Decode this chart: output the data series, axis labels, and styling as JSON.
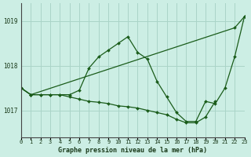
{
  "title": "Graphe pression niveau de la mer (hPa)",
  "background_color": "#cceee4",
  "grid_color": "#aad4c8",
  "line_color": "#1a5c1a",
  "xlim": [
    0,
    23
  ],
  "ylim": [
    1016.4,
    1019.4
  ],
  "yticks": [
    1017,
    1018,
    1019
  ],
  "xticks": [
    0,
    1,
    2,
    3,
    4,
    5,
    6,
    7,
    8,
    9,
    10,
    11,
    12,
    13,
    14,
    15,
    16,
    17,
    18,
    19,
    20,
    21,
    22,
    23
  ],
  "series": [
    {
      "x": [
        0,
        1,
        22,
        23
      ],
      "y": [
        1017.5,
        1017.35,
        1018.85,
        1019.1
      ]
    },
    {
      "x": [
        0,
        1,
        2,
        3,
        4,
        5,
        6,
        7,
        8,
        9,
        10,
        11,
        12,
        13,
        14,
        15,
        16,
        17,
        18,
        19,
        20,
        21,
        22,
        23
      ],
      "y": [
        1017.5,
        1017.35,
        1017.35,
        1017.35,
        1017.35,
        1017.35,
        1017.45,
        1017.95,
        1018.2,
        1018.35,
        1018.5,
        1018.65,
        1018.3,
        1018.15,
        1017.65,
        1017.3,
        1016.95,
        1016.75,
        1016.75,
        1017.2,
        1017.15,
        1017.5,
        1018.2,
        1019.1
      ]
    },
    {
      "x": [
        0,
        1,
        2,
        3,
        4,
        5,
        6,
        7,
        8,
        9,
        10,
        11,
        12,
        13,
        14,
        15,
        16,
        17,
        18,
        19,
        20
      ],
      "y": [
        1017.5,
        1017.35,
        1017.35,
        1017.35,
        1017.35,
        1017.3,
        1017.25,
        1017.2,
        1017.18,
        1017.15,
        1017.1,
        1017.08,
        1017.05,
        1017.0,
        1016.95,
        1016.9,
        1016.8,
        1016.72,
        1016.72,
        1016.85,
        1017.2
      ]
    }
  ]
}
